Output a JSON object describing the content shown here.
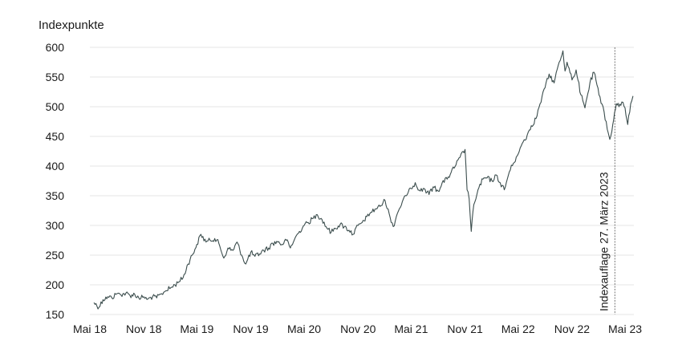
{
  "chart_data": {
    "type": "line",
    "title": "",
    "ylabel": "Indexpunkte",
    "xlabel": "",
    "ylim": [
      150,
      600
    ],
    "yticks": [
      150,
      200,
      250,
      300,
      350,
      400,
      450,
      500,
      550,
      600
    ],
    "xlim": [
      "2018-05-01",
      "2023-05-31"
    ],
    "xticks": [
      {
        "label": "Mai 18",
        "date": "2018-05-01"
      },
      {
        "label": "Nov 18",
        "date": "2018-11-01"
      },
      {
        "label": "Mai 19",
        "date": "2019-05-01"
      },
      {
        "label": "Nov 19",
        "date": "2019-11-01"
      },
      {
        "label": "Mai 20",
        "date": "2020-05-01"
      },
      {
        "label": "Nov 20",
        "date": "2020-11-01"
      },
      {
        "label": "Mai 21",
        "date": "2021-05-01"
      },
      {
        "label": "Nov 21",
        "date": "2021-11-01"
      },
      {
        "label": "Mai 22",
        "date": "2022-05-01"
      },
      {
        "label": "Nov 22",
        "date": "2022-11-01"
      },
      {
        "label": "Mai 23",
        "date": "2023-05-01"
      }
    ],
    "grid": true,
    "line_color": "#3b4d4d",
    "series": [
      {
        "name": "",
        "points": [
          [
            "2018-05-15",
            170
          ],
          [
            "2018-06-01",
            162
          ],
          [
            "2018-06-15",
            175
          ],
          [
            "2018-07-01",
            180
          ],
          [
            "2018-07-15",
            178
          ],
          [
            "2018-08-01",
            185
          ],
          [
            "2018-08-15",
            183
          ],
          [
            "2018-09-01",
            186
          ],
          [
            "2018-09-15",
            182
          ],
          [
            "2018-10-01",
            184
          ],
          [
            "2018-10-15",
            178
          ],
          [
            "2018-11-01",
            180
          ],
          [
            "2018-11-15",
            176
          ],
          [
            "2018-12-01",
            180
          ],
          [
            "2018-12-15",
            178
          ],
          [
            "2019-01-01",
            185
          ],
          [
            "2019-01-15",
            190
          ],
          [
            "2019-02-01",
            195
          ],
          [
            "2019-02-15",
            200
          ],
          [
            "2019-03-01",
            205
          ],
          [
            "2019-03-15",
            212
          ],
          [
            "2019-04-01",
            235
          ],
          [
            "2019-04-15",
            250
          ],
          [
            "2019-05-01",
            268
          ],
          [
            "2019-05-15",
            285
          ],
          [
            "2019-06-01",
            272
          ],
          [
            "2019-06-15",
            275
          ],
          [
            "2019-07-01",
            278
          ],
          [
            "2019-07-15",
            270
          ],
          [
            "2019-08-01",
            245
          ],
          [
            "2019-08-15",
            262
          ],
          [
            "2019-09-01",
            258
          ],
          [
            "2019-09-15",
            272
          ],
          [
            "2019-10-01",
            250
          ],
          [
            "2019-10-15",
            235
          ],
          [
            "2019-11-01",
            255
          ],
          [
            "2019-11-15",
            248
          ],
          [
            "2019-12-01",
            252
          ],
          [
            "2019-12-15",
            258
          ],
          [
            "2020-01-01",
            262
          ],
          [
            "2020-01-15",
            270
          ],
          [
            "2020-02-01",
            272
          ],
          [
            "2020-02-15",
            268
          ],
          [
            "2020-03-01",
            275
          ],
          [
            "2020-03-15",
            262
          ],
          [
            "2020-04-01",
            280
          ],
          [
            "2020-04-15",
            290
          ],
          [
            "2020-05-01",
            300
          ],
          [
            "2020-05-15",
            305
          ],
          [
            "2020-06-01",
            312
          ],
          [
            "2020-06-15",
            318
          ],
          [
            "2020-07-01",
            310
          ],
          [
            "2020-07-15",
            298
          ],
          [
            "2020-08-01",
            288
          ],
          [
            "2020-08-15",
            295
          ],
          [
            "2020-09-01",
            302
          ],
          [
            "2020-09-15",
            298
          ],
          [
            "2020-10-01",
            292
          ],
          [
            "2020-10-15",
            285
          ],
          [
            "2020-11-01",
            300
          ],
          [
            "2020-11-15",
            305
          ],
          [
            "2020-12-01",
            315
          ],
          [
            "2020-12-15",
            322
          ],
          [
            "2021-01-01",
            328
          ],
          [
            "2021-01-15",
            332
          ],
          [
            "2021-02-01",
            342
          ],
          [
            "2021-02-15",
            320
          ],
          [
            "2021-03-01",
            298
          ],
          [
            "2021-03-15",
            320
          ],
          [
            "2021-04-01",
            340
          ],
          [
            "2021-04-15",
            350
          ],
          [
            "2021-05-01",
            362
          ],
          [
            "2021-05-15",
            372
          ],
          [
            "2021-06-01",
            358
          ],
          [
            "2021-06-15",
            362
          ],
          [
            "2021-07-01",
            352
          ],
          [
            "2021-07-15",
            365
          ],
          [
            "2021-08-01",
            358
          ],
          [
            "2021-08-15",
            372
          ],
          [
            "2021-09-01",
            378
          ],
          [
            "2021-09-15",
            390
          ],
          [
            "2021-10-01",
            402
          ],
          [
            "2021-10-15",
            415
          ],
          [
            "2021-11-01",
            428
          ],
          [
            "2021-11-08",
            360
          ],
          [
            "2021-11-15",
            345
          ],
          [
            "2021-11-22",
            290
          ],
          [
            "2021-12-01",
            335
          ],
          [
            "2021-12-15",
            360
          ],
          [
            "2022-01-01",
            378
          ],
          [
            "2022-01-15",
            380
          ],
          [
            "2022-02-01",
            375
          ],
          [
            "2022-02-15",
            385
          ],
          [
            "2022-03-01",
            372
          ],
          [
            "2022-03-15",
            360
          ],
          [
            "2022-04-01",
            390
          ],
          [
            "2022-04-15",
            405
          ],
          [
            "2022-05-01",
            420
          ],
          [
            "2022-05-15",
            438
          ],
          [
            "2022-06-01",
            452
          ],
          [
            "2022-06-15",
            468
          ],
          [
            "2022-07-01",
            480
          ],
          [
            "2022-07-15",
            505
          ],
          [
            "2022-08-01",
            532
          ],
          [
            "2022-08-15",
            555
          ],
          [
            "2022-09-01",
            540
          ],
          [
            "2022-09-15",
            570
          ],
          [
            "2022-10-01",
            594
          ],
          [
            "2022-10-08",
            560
          ],
          [
            "2022-10-15",
            575
          ],
          [
            "2022-11-01",
            545
          ],
          [
            "2022-11-15",
            562
          ],
          [
            "2022-12-01",
            520
          ],
          [
            "2022-12-15",
            498
          ],
          [
            "2023-01-01",
            540
          ],
          [
            "2023-01-15",
            558
          ],
          [
            "2023-02-01",
            520
          ],
          [
            "2023-02-15",
            500
          ],
          [
            "2023-03-01",
            462
          ],
          [
            "2023-03-10",
            445
          ],
          [
            "2023-03-20",
            470
          ],
          [
            "2023-04-01",
            505
          ],
          [
            "2023-04-10",
            500
          ],
          [
            "2023-04-20",
            508
          ],
          [
            "2023-05-01",
            498
          ],
          [
            "2023-05-10",
            470
          ],
          [
            "2023-05-20",
            505
          ],
          [
            "2023-05-28",
            518
          ]
        ]
      }
    ],
    "annotations": [
      {
        "type": "vline",
        "date": "2023-03-27",
        "label": "Indexauflage 27. März 2023"
      }
    ]
  }
}
